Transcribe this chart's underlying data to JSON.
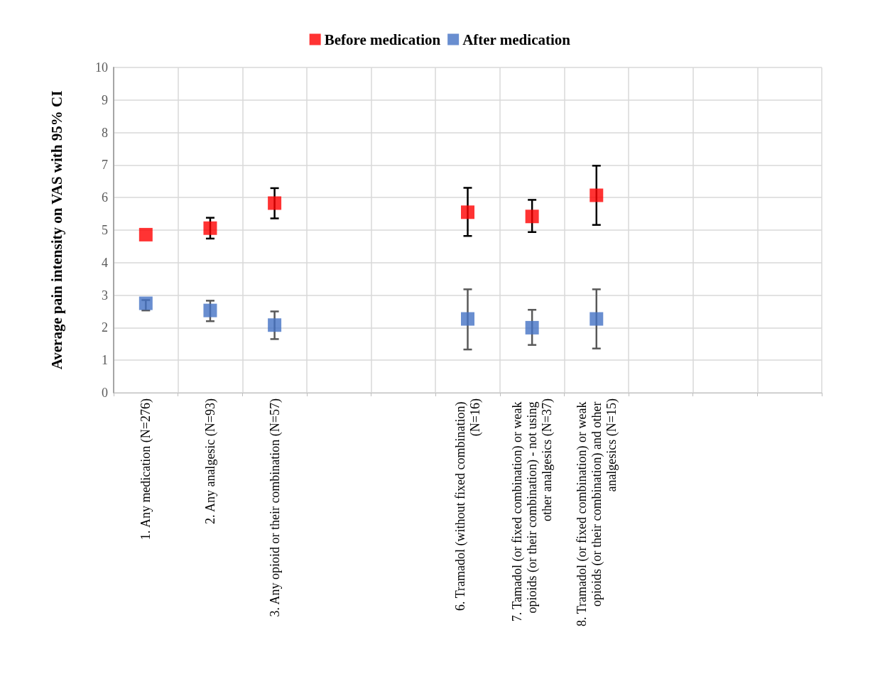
{
  "chart_data": {
    "type": "scatter",
    "ylabel": "Average pain intensity on VAS with 95% CI",
    "categories": [
      "1. Any medication (N=276)",
      "2. Any analgesic (N=93)",
      "3. Any opioid or their combination (N=57)",
      null,
      null,
      "6. Tramadol (without fixed combination) (N=16)",
      "7. Tamadol (or fixed combination) or weak opioids (or their combination) - not using other analgesics (N=37)",
      "8. Tramadol (or fixed combination) or weak opioids (or their combination) and other analgesics (N=15)",
      null,
      null,
      null
    ],
    "series": [
      {
        "name": "Before medication",
        "color": "#ff0000",
        "values": [
          4.86,
          5.06,
          5.83,
          null,
          null,
          5.55,
          5.42,
          6.07,
          null,
          null,
          null
        ],
        "errors": [
          null,
          [
            4.74,
            5.38
          ],
          [
            5.36,
            6.29
          ],
          null,
          null,
          [
            4.82,
            6.3
          ],
          [
            4.94,
            5.93
          ],
          [
            5.16,
            6.98
          ],
          null,
          null,
          null
        ]
      },
      {
        "name": "After medication",
        "color": "#4472c4",
        "values": [
          2.75,
          2.53,
          2.08,
          null,
          null,
          2.27,
          2.0,
          2.27,
          null,
          null,
          null
        ],
        "errors": [
          [
            2.53,
            2.85
          ],
          [
            2.2,
            2.83
          ],
          [
            1.65,
            2.5
          ],
          null,
          null,
          [
            1.33,
            3.18
          ],
          [
            1.47,
            2.55
          ],
          [
            1.36,
            3.18
          ],
          null,
          null,
          null
        ]
      }
    ],
    "ylim": [
      0,
      10
    ],
    "yticks": [
      0,
      1,
      2,
      3,
      4,
      5,
      6,
      7,
      8,
      9,
      10
    ],
    "grid": true,
    "legend": "top",
    "marker": "square"
  }
}
